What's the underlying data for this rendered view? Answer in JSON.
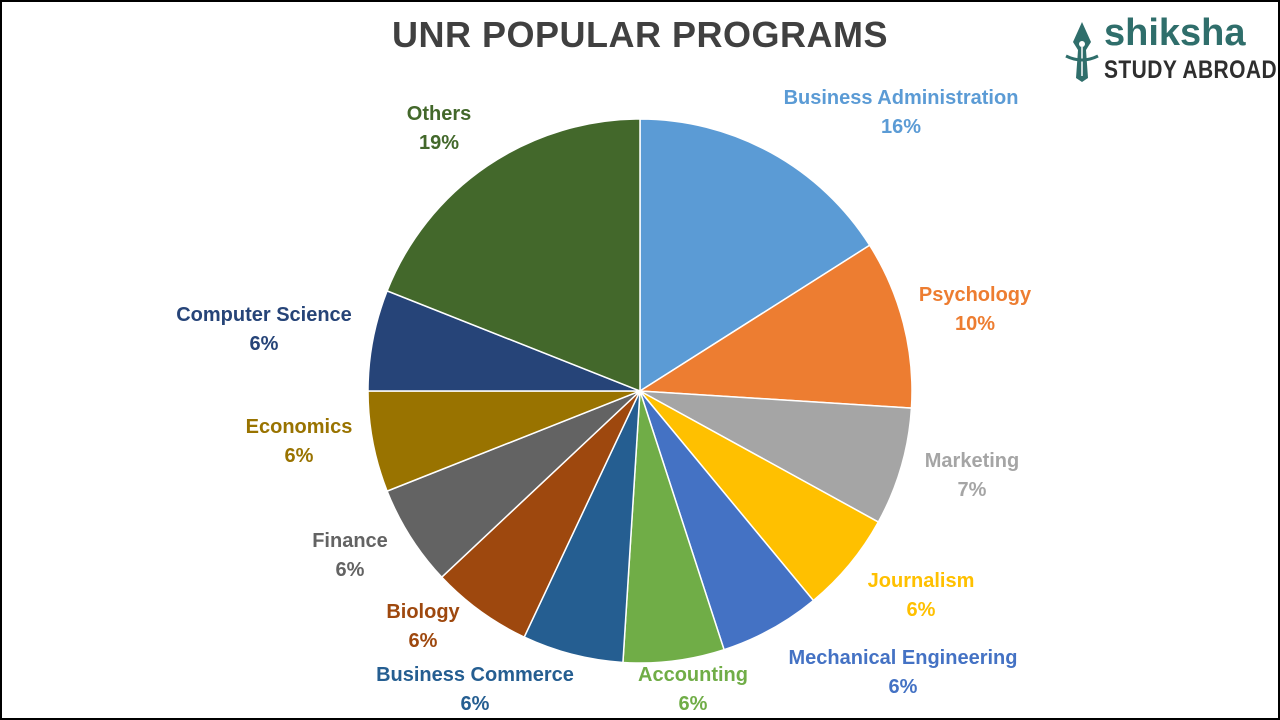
{
  "chart_data": {
    "type": "pie",
    "title": "UNR POPULAR PROGRAMS",
    "slices": [
      {
        "label": "Business Administration",
        "value": 16,
        "display": "16%",
        "color": "#5b9bd5"
      },
      {
        "label": "Psychology",
        "value": 10,
        "display": "10%",
        "color": "#ed7d31"
      },
      {
        "label": "Marketing",
        "value": 7,
        "display": "7%",
        "color": "#a5a5a5"
      },
      {
        "label": "Journalism",
        "value": 6,
        "display": "6%",
        "color": "#ffc000"
      },
      {
        "label": "Mechanical Engineering",
        "value": 6,
        "display": "6%",
        "color": "#4472c4"
      },
      {
        "label": "Accounting",
        "value": 6,
        "display": "6%",
        "color": "#70ad47"
      },
      {
        "label": "Business Commerce",
        "value": 6,
        "display": "6%",
        "color": "#255e91"
      },
      {
        "label": "Biology",
        "value": 6,
        "display": "6%",
        "color": "#9e480e"
      },
      {
        "label": "Finance",
        "value": 6,
        "display": "6%",
        "color": "#636363"
      },
      {
        "label": "Economics",
        "value": 6,
        "display": "6%",
        "color": "#997300"
      },
      {
        "label": "Computer Science",
        "value": 6,
        "display": "6%",
        "color": "#264478"
      },
      {
        "label": "Others",
        "value": 19,
        "display": "19%",
        "color": "#43682b"
      }
    ],
    "legend": "none",
    "data_labels": "outside"
  },
  "logo": {
    "name": "shiksha",
    "subtitle": "STUDY ABROAD"
  }
}
